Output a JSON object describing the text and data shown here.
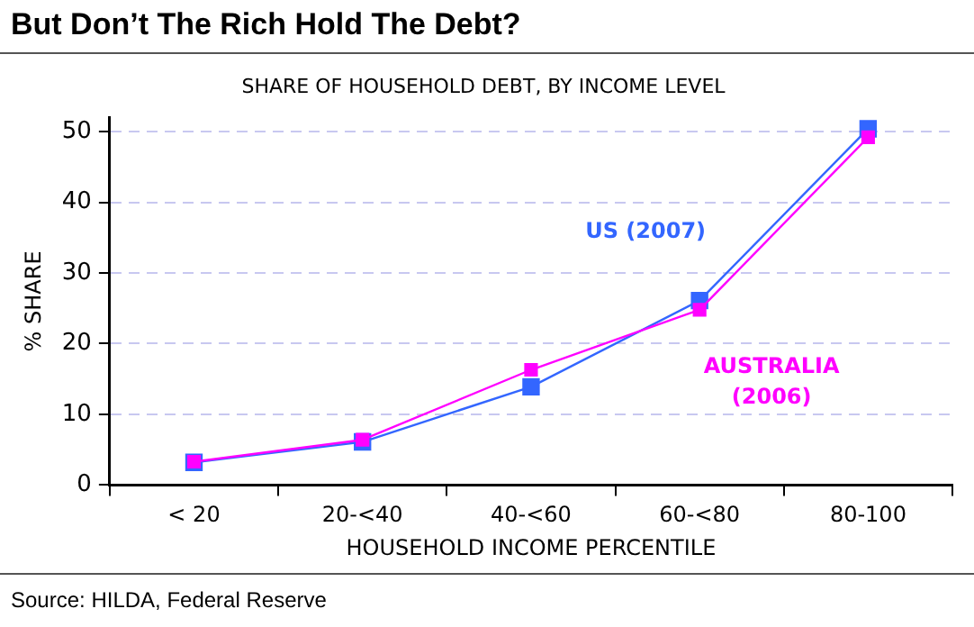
{
  "chart_data": {
    "type": "line",
    "title": "But Don’t The Rich Hold The Debt?",
    "subtitle": "SHARE OF HOUSEHOLD DEBT, BY INCOME LEVEL",
    "xlabel": "HOUSEHOLD INCOME PERCENTILE",
    "ylabel": "% SHARE",
    "categories": [
      "< 20",
      "20-<40",
      "40-<60",
      "60-<80",
      "80-100"
    ],
    "series": [
      {
        "name": "US (2007)",
        "color": "#3366ff",
        "values": [
          3.2,
          6.1,
          13.9,
          26.1,
          50.4
        ]
      },
      {
        "name": "AUSTRALIA (2006)",
        "color": "#ff00ff",
        "values": [
          3.3,
          6.4,
          16.3,
          24.8,
          49.2
        ]
      }
    ],
    "ylim": [
      0,
      52
    ],
    "yticks": [
      0,
      10,
      20,
      30,
      40,
      50
    ],
    "grid": "y",
    "legend": false,
    "marker": "square",
    "line_style": "solid",
    "annotations": [
      "Source: HILDA, Federal Reserve"
    ]
  }
}
